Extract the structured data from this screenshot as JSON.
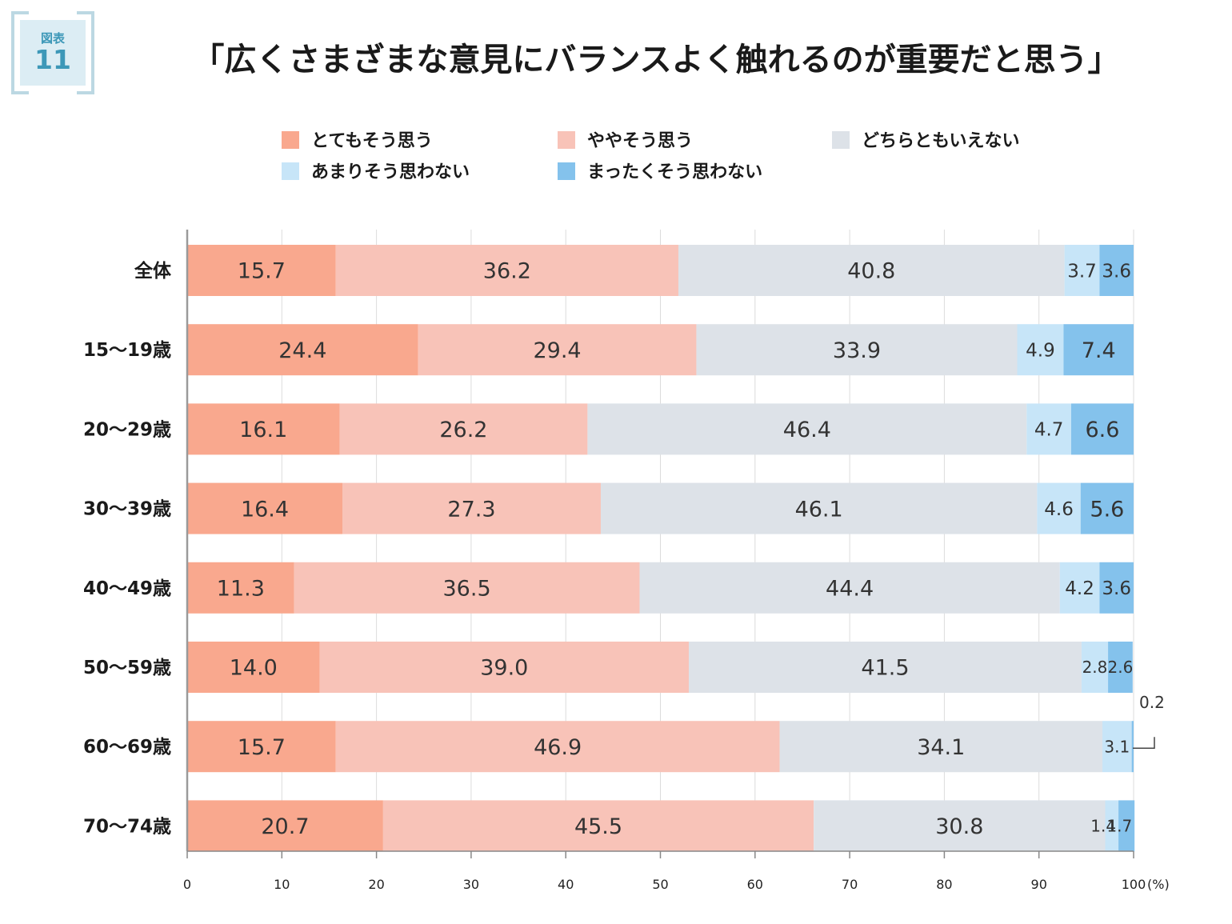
{
  "figure": {
    "badge_label": "図表",
    "badge_number": "11"
  },
  "title": "「広くさまざまな意見にバランスよく触れるのが重要だと思う」",
  "chart_data": {
    "type": "bar",
    "orientation": "horizontal",
    "stacked": true,
    "categories": [
      "全体",
      "15〜19歳",
      "20〜29歳",
      "30〜39歳",
      "40〜49歳",
      "50〜59歳",
      "60〜69歳",
      "70〜74歳"
    ],
    "series": [
      {
        "name": "とてもそう思う",
        "color": "#f9a88e",
        "values": [
          15.7,
          24.4,
          16.1,
          16.4,
          11.3,
          14.0,
          15.7,
          20.7
        ]
      },
      {
        "name": "ややそう思う",
        "color": "#f8c3b8",
        "values": [
          36.2,
          29.4,
          26.2,
          27.3,
          36.5,
          39.0,
          46.9,
          45.5
        ]
      },
      {
        "name": "どちらともいえない",
        "color": "#dde2e8",
        "values": [
          40.8,
          33.9,
          46.4,
          46.1,
          44.4,
          41.5,
          34.1,
          30.8
        ]
      },
      {
        "name": "あまりそう思わない",
        "color": "#c7e5f8",
        "values": [
          3.7,
          4.9,
          4.7,
          4.6,
          4.2,
          2.8,
          3.1,
          1.4
        ]
      },
      {
        "name": "まったくそう思わない",
        "color": "#84c2ec",
        "values": [
          3.6,
          7.4,
          6.6,
          5.6,
          3.6,
          2.6,
          0.2,
          1.7
        ]
      }
    ],
    "xlim": [
      0,
      100
    ],
    "xticks": [
      0,
      10,
      20,
      30,
      40,
      50,
      60,
      70,
      80,
      90,
      100
    ],
    "xunit": "(%)",
    "grid": true,
    "legend_position": "top"
  }
}
